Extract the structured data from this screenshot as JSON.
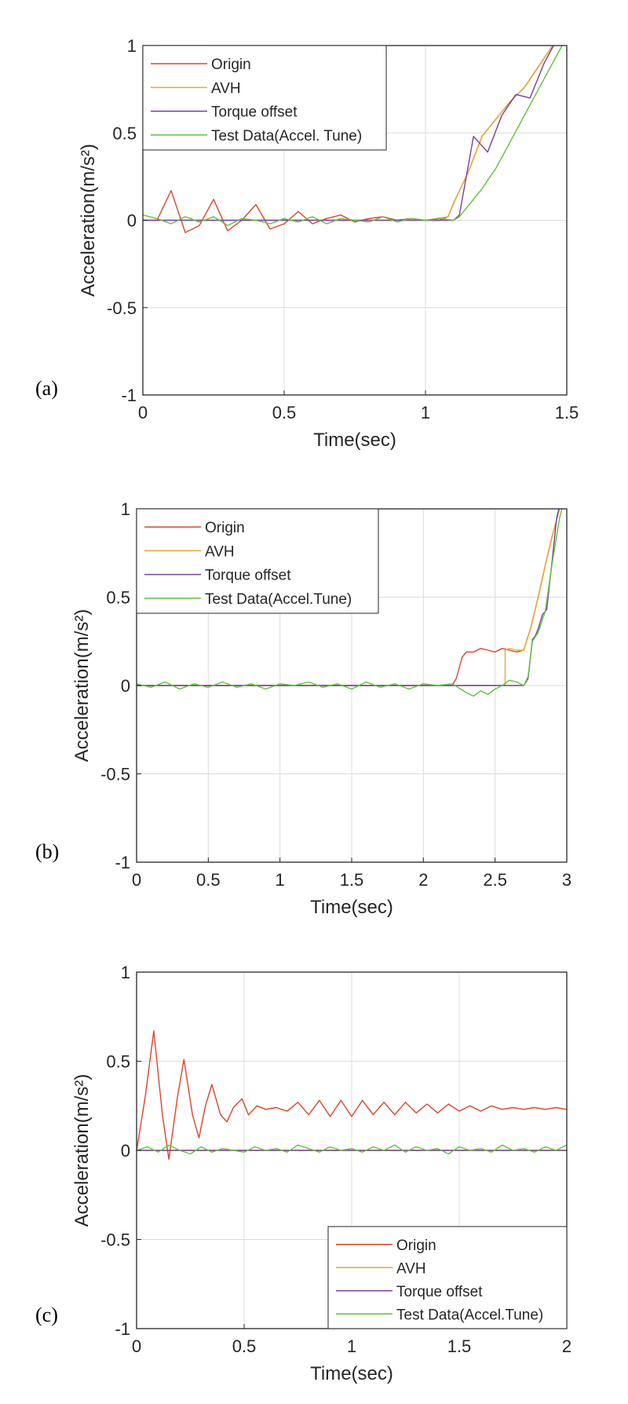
{
  "panel_tags": [
    "(a)",
    "(b)",
    "(c)"
  ],
  "colors": {
    "origin": "#d9452c",
    "avh": "#e8a82c",
    "torque": "#7a3ea0",
    "test": "#5ec23c"
  },
  "chart_data": [
    {
      "type": "line",
      "xlabel": "Time(sec)",
      "ylabel": "Acceleration(m/s²)",
      "xlim": [
        0,
        1.5
      ],
      "ylim": [
        -1,
        1
      ],
      "xticks": [
        "0",
        "0.5",
        "1",
        "1.5"
      ],
      "yticks": [
        "-1",
        "-0.5",
        "0",
        "0.5",
        "1"
      ],
      "grid": true,
      "legend_position": "top-left",
      "series": [
        {
          "name": "Origin",
          "color": "#d9452c",
          "x": [
            0,
            0.05,
            0.1,
            0.15,
            0.2,
            0.25,
            0.3,
            0.35,
            0.4,
            0.45,
            0.5,
            0.55,
            0.6,
            0.65,
            0.7,
            0.75,
            0.8,
            0.85,
            0.9,
            0.95,
            1.0,
            1.05,
            1.08,
            1.1,
            1.15,
            1.2,
            1.25,
            1.3,
            1.35,
            1.4,
            1.45,
            1.5
          ],
          "y": [
            0,
            0.0,
            0.17,
            -0.07,
            -0.03,
            0.12,
            -0.06,
            0.0,
            0.09,
            -0.05,
            -0.02,
            0.05,
            -0.02,
            0.01,
            0.03,
            -0.01,
            0.01,
            0.02,
            0.0,
            0.01,
            0.0,
            0.0,
            0.02,
            0.1,
            0.27,
            0.48,
            0.58,
            0.68,
            0.76,
            0.88,
            1.0,
            1.12
          ]
        },
        {
          "name": "AVH",
          "color": "#e8a82c",
          "x": [
            0,
            0.5,
            1.0,
            1.08,
            1.1,
            1.15,
            1.2,
            1.25,
            1.3,
            1.35,
            1.4,
            1.45,
            1.5
          ],
          "y": [
            0,
            0,
            0,
            0.02,
            0.1,
            0.27,
            0.48,
            0.58,
            0.68,
            0.76,
            0.88,
            1.0,
            1.12
          ]
        },
        {
          "name": "Torque offset",
          "color": "#7a3ea0",
          "x": [
            0,
            0.5,
            1.0,
            1.1,
            1.12,
            1.17,
            1.22,
            1.27,
            1.32,
            1.37,
            1.42,
            1.46,
            1.5
          ],
          "y": [
            0,
            0,
            0,
            0,
            0.03,
            0.48,
            0.39,
            0.6,
            0.72,
            0.7,
            0.9,
            1.02,
            1.12
          ]
        },
        {
          "name": "Test Data(Accel. Tune)",
          "color": "#5ec23c",
          "x": [
            0,
            0.05,
            0.1,
            0.15,
            0.2,
            0.25,
            0.3,
            0.35,
            0.4,
            0.45,
            0.5,
            0.55,
            0.6,
            0.65,
            0.7,
            0.75,
            0.8,
            0.85,
            0.9,
            0.95,
            1.0,
            1.05,
            1.1,
            1.12,
            1.15,
            1.2,
            1.25,
            1.3,
            1.35,
            1.4,
            1.45,
            1.5
          ],
          "y": [
            0.03,
            0.01,
            -0.02,
            0.02,
            -0.01,
            0.02,
            -0.03,
            0.01,
            0.0,
            -0.02,
            0.01,
            -0.01,
            0.02,
            -0.02,
            0.01,
            0.0,
            -0.01,
            0.02,
            -0.01,
            0.01,
            0.0,
            0.01,
            0.0,
            0.02,
            0.08,
            0.18,
            0.3,
            0.45,
            0.6,
            0.75,
            0.9,
            1.05
          ]
        }
      ]
    },
    {
      "type": "line",
      "xlabel": "Time(sec)",
      "ylabel": "Acceleration(m/s²)",
      "xlim": [
        0,
        3
      ],
      "ylim": [
        -1,
        1
      ],
      "xticks": [
        "0",
        "0.5",
        "1",
        "1.5",
        "2",
        "2.5",
        "3"
      ],
      "yticks": [
        "-1",
        "-0.5",
        "0",
        "0.5",
        "1"
      ],
      "grid": true,
      "legend_position": "top-left",
      "series": [
        {
          "name": "Origin",
          "color": "#d9452c",
          "x": [
            0,
            0.5,
            1.0,
            1.5,
            2.0,
            2.2,
            2.23,
            2.27,
            2.3,
            2.35,
            2.4,
            2.45,
            2.5,
            2.55,
            2.6,
            2.65,
            2.7,
            2.75,
            2.8,
            2.85,
            2.9,
            2.95,
            3.0
          ],
          "y": [
            0,
            0,
            0,
            0,
            0,
            0.0,
            0.04,
            0.16,
            0.19,
            0.19,
            0.21,
            0.2,
            0.19,
            0.21,
            0.2,
            0.19,
            0.2,
            0.33,
            0.5,
            0.68,
            0.85,
            1.0,
            1.1
          ]
        },
        {
          "name": "AVH",
          "color": "#e8a82c",
          "x": [
            0,
            0.5,
            1.0,
            1.5,
            2.0,
            2.4,
            2.57,
            2.57,
            2.6,
            2.65,
            2.7,
            2.75,
            2.8,
            2.85,
            2.9,
            2.95,
            3.0
          ],
          "y": [
            0,
            0,
            0,
            0,
            0,
            0,
            0.0,
            0.2,
            0.21,
            0.2,
            0.2,
            0.33,
            0.5,
            0.68,
            0.85,
            1.0,
            1.1
          ]
        },
        {
          "name": "Torque offset",
          "color": "#7a3ea0",
          "x": [
            0,
            0.5,
            1.0,
            1.5,
            2.0,
            2.5,
            2.7,
            2.73,
            2.76,
            2.78,
            2.8,
            2.83,
            2.86,
            2.9,
            2.93,
            2.96,
            3.0
          ],
          "y": [
            0,
            0,
            0,
            0,
            0,
            0,
            0.0,
            0.04,
            0.26,
            0.28,
            0.32,
            0.4,
            0.43,
            0.72,
            0.95,
            1.05,
            1.12
          ]
        },
        {
          "name": "Test Data(Accel.Tune)",
          "color": "#5ec23c",
          "x": [
            0,
            0.1,
            0.2,
            0.3,
            0.4,
            0.5,
            0.6,
            0.7,
            0.8,
            0.9,
            1.0,
            1.1,
            1.2,
            1.3,
            1.4,
            1.5,
            1.6,
            1.7,
            1.8,
            1.9,
            2.0,
            2.1,
            2.2,
            2.3,
            2.35,
            2.4,
            2.45,
            2.5,
            2.55,
            2.6,
            2.65,
            2.7,
            2.73,
            2.76,
            2.8,
            2.85,
            2.9,
            2.95,
            3.0
          ],
          "y": [
            0.01,
            -0.01,
            0.02,
            -0.02,
            0.01,
            -0.01,
            0.02,
            -0.01,
            0.01,
            -0.02,
            0.01,
            0.0,
            0.02,
            -0.01,
            0.01,
            -0.02,
            0.02,
            -0.01,
            0.01,
            -0.02,
            0.01,
            0.0,
            0.01,
            -0.04,
            -0.06,
            -0.03,
            -0.05,
            -0.02,
            0.0,
            0.03,
            0.02,
            0.0,
            0.05,
            0.25,
            0.3,
            0.42,
            0.7,
            0.95,
            1.1
          ]
        }
      ]
    },
    {
      "type": "line",
      "xlabel": "Time(sec)",
      "ylabel": "Acceleration(m/s²)",
      "xlim": [
        0,
        2
      ],
      "ylim": [
        -1,
        1
      ],
      "xticks": [
        "0",
        "0.5",
        "1",
        "1.5",
        "2"
      ],
      "yticks": [
        "-1",
        "-0.5",
        "0",
        "0.5",
        "1"
      ],
      "grid": true,
      "legend_position": "bottom-right",
      "series": [
        {
          "name": "Origin",
          "color": "#d9452c",
          "x": [
            0,
            0.04,
            0.08,
            0.12,
            0.15,
            0.19,
            0.22,
            0.26,
            0.29,
            0.32,
            0.35,
            0.39,
            0.42,
            0.45,
            0.49,
            0.52,
            0.56,
            0.6,
            0.65,
            0.7,
            0.75,
            0.8,
            0.85,
            0.9,
            0.95,
            1.0,
            1.05,
            1.1,
            1.15,
            1.2,
            1.25,
            1.3,
            1.35,
            1.4,
            1.45,
            1.5,
            1.55,
            1.6,
            1.65,
            1.7,
            1.75,
            1.8,
            1.85,
            1.9,
            1.95,
            2.0
          ],
          "y": [
            0,
            0.3,
            0.67,
            0.2,
            -0.05,
            0.3,
            0.51,
            0.2,
            0.07,
            0.25,
            0.37,
            0.2,
            0.16,
            0.24,
            0.29,
            0.2,
            0.25,
            0.23,
            0.24,
            0.22,
            0.27,
            0.2,
            0.28,
            0.19,
            0.28,
            0.19,
            0.28,
            0.2,
            0.27,
            0.2,
            0.27,
            0.21,
            0.26,
            0.21,
            0.26,
            0.22,
            0.25,
            0.22,
            0.25,
            0.23,
            0.24,
            0.23,
            0.24,
            0.23,
            0.24,
            0.23
          ]
        },
        {
          "name": "AVH",
          "color": "#e8a82c",
          "x": [
            0,
            2
          ],
          "y": [
            0,
            0
          ]
        },
        {
          "name": "Torque offset",
          "color": "#7a3ea0",
          "x": [
            0,
            2
          ],
          "y": [
            0,
            0
          ]
        },
        {
          "name": "Test Data(Accel.Tune)",
          "color": "#5ec23c",
          "x": [
            0,
            0.05,
            0.1,
            0.15,
            0.2,
            0.25,
            0.3,
            0.35,
            0.4,
            0.45,
            0.5,
            0.55,
            0.6,
            0.65,
            0.7,
            0.75,
            0.8,
            0.85,
            0.9,
            0.95,
            1.0,
            1.05,
            1.1,
            1.15,
            1.2,
            1.25,
            1.3,
            1.35,
            1.4,
            1.45,
            1.5,
            1.55,
            1.6,
            1.65,
            1.7,
            1.75,
            1.8,
            1.85,
            1.9,
            1.95,
            2.0
          ],
          "y": [
            0.0,
            0.02,
            -0.01,
            0.03,
            0.0,
            -0.02,
            0.02,
            -0.01,
            0.01,
            0.0,
            -0.01,
            0.02,
            0.0,
            0.01,
            -0.01,
            0.03,
            0.01,
            -0.01,
            0.02,
            0.0,
            0.01,
            -0.01,
            0.02,
            0.0,
            0.03,
            -0.01,
            0.02,
            0.0,
            0.01,
            -0.02,
            0.02,
            0.0,
            0.01,
            -0.01,
            0.03,
            0.0,
            0.01,
            -0.01,
            0.02,
            0.0,
            0.03
          ]
        }
      ]
    }
  ]
}
